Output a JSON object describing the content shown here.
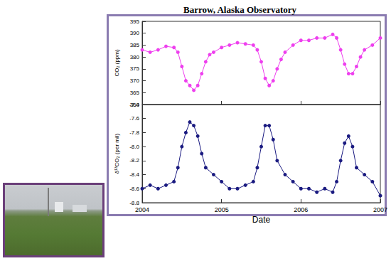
{
  "chart_data": [
    {
      "type": "line",
      "title": "Barrow, Alaska Observatory",
      "ylabel": "CO₂ (ppm)",
      "x": [
        2004.0,
        2004.1,
        2004.2,
        2004.3,
        2004.4,
        2004.45,
        2004.5,
        2004.55,
        2004.6,
        2004.65,
        2004.7,
        2004.75,
        2004.8,
        2004.85,
        2004.9,
        2005.0,
        2005.1,
        2005.2,
        2005.3,
        2005.4,
        2005.45,
        2005.5,
        2005.55,
        2005.6,
        2005.65,
        2005.7,
        2005.75,
        2005.8,
        2005.9,
        2006.0,
        2006.1,
        2006.2,
        2006.3,
        2006.4,
        2006.45,
        2006.5,
        2006.55,
        2006.6,
        2006.65,
        2006.7,
        2006.75,
        2006.8,
        2006.9,
        2007.0
      ],
      "series": [
        {
          "color": "#ee3fee",
          "marker": "circle",
          "line_style": "solid",
          "values": [
            383,
            382,
            383,
            384.5,
            384,
            382,
            376,
            370,
            368,
            366,
            368,
            373,
            378,
            381,
            382,
            384,
            385,
            386,
            385.5,
            385,
            383,
            378,
            371,
            368,
            370,
            375,
            379,
            382,
            385,
            387,
            387,
            388,
            388,
            389.5,
            388,
            383,
            377,
            373,
            373,
            376,
            380,
            383,
            385,
            388
          ]
        }
      ],
      "xlim": [
        2004,
        2007
      ],
      "xticks": [
        2004,
        2005,
        2006,
        2007
      ],
      "ylim": [
        360,
        395
      ],
      "yticks": [
        360,
        365,
        370,
        375,
        380,
        385,
        390,
        395
      ],
      "grid": false,
      "tick_labels": "y"
    },
    {
      "type": "line",
      "xlabel": "Date",
      "ylabel": "δ¹³CO₂ (per mil)",
      "x": [
        2004.0,
        2004.1,
        2004.2,
        2004.3,
        2004.4,
        2004.45,
        2004.5,
        2004.55,
        2004.6,
        2004.65,
        2004.7,
        2004.75,
        2004.8,
        2004.9,
        2005.0,
        2005.1,
        2005.2,
        2005.3,
        2005.4,
        2005.45,
        2005.5,
        2005.55,
        2005.6,
        2005.65,
        2005.7,
        2005.8,
        2005.9,
        2006.0,
        2006.1,
        2006.2,
        2006.3,
        2006.4,
        2006.45,
        2006.5,
        2006.55,
        2006.6,
        2006.65,
        2006.7,
        2006.8,
        2006.9,
        2007.0
      ],
      "series": [
        {
          "color": "#1a1a80",
          "marker": "circle",
          "line_style": "solid",
          "values": [
            -8.6,
            -8.55,
            -8.6,
            -8.55,
            -8.5,
            -8.3,
            -8.0,
            -7.8,
            -7.65,
            -7.7,
            -7.85,
            -8.1,
            -8.3,
            -8.4,
            -8.5,
            -8.6,
            -8.6,
            -8.55,
            -8.5,
            -8.3,
            -8.0,
            -7.7,
            -7.7,
            -7.9,
            -8.2,
            -8.4,
            -8.5,
            -8.6,
            -8.6,
            -8.65,
            -8.6,
            -8.65,
            -8.5,
            -8.2,
            -7.95,
            -7.85,
            -8.0,
            -8.3,
            -8.4,
            -8.5,
            -8.7
          ]
        }
      ],
      "xlim": [
        2004,
        2007
      ],
      "xticks": [
        2004,
        2005,
        2006,
        2007
      ],
      "ylim": [
        -8.8,
        -7.4
      ],
      "yticks": [
        -7.4,
        -7.6,
        -7.8,
        {
          "value": -8,
          "label": "-8.0"
        },
        -8.2,
        -8.4,
        -8.6,
        -8.8
      ],
      "grid": false
    }
  ]
}
